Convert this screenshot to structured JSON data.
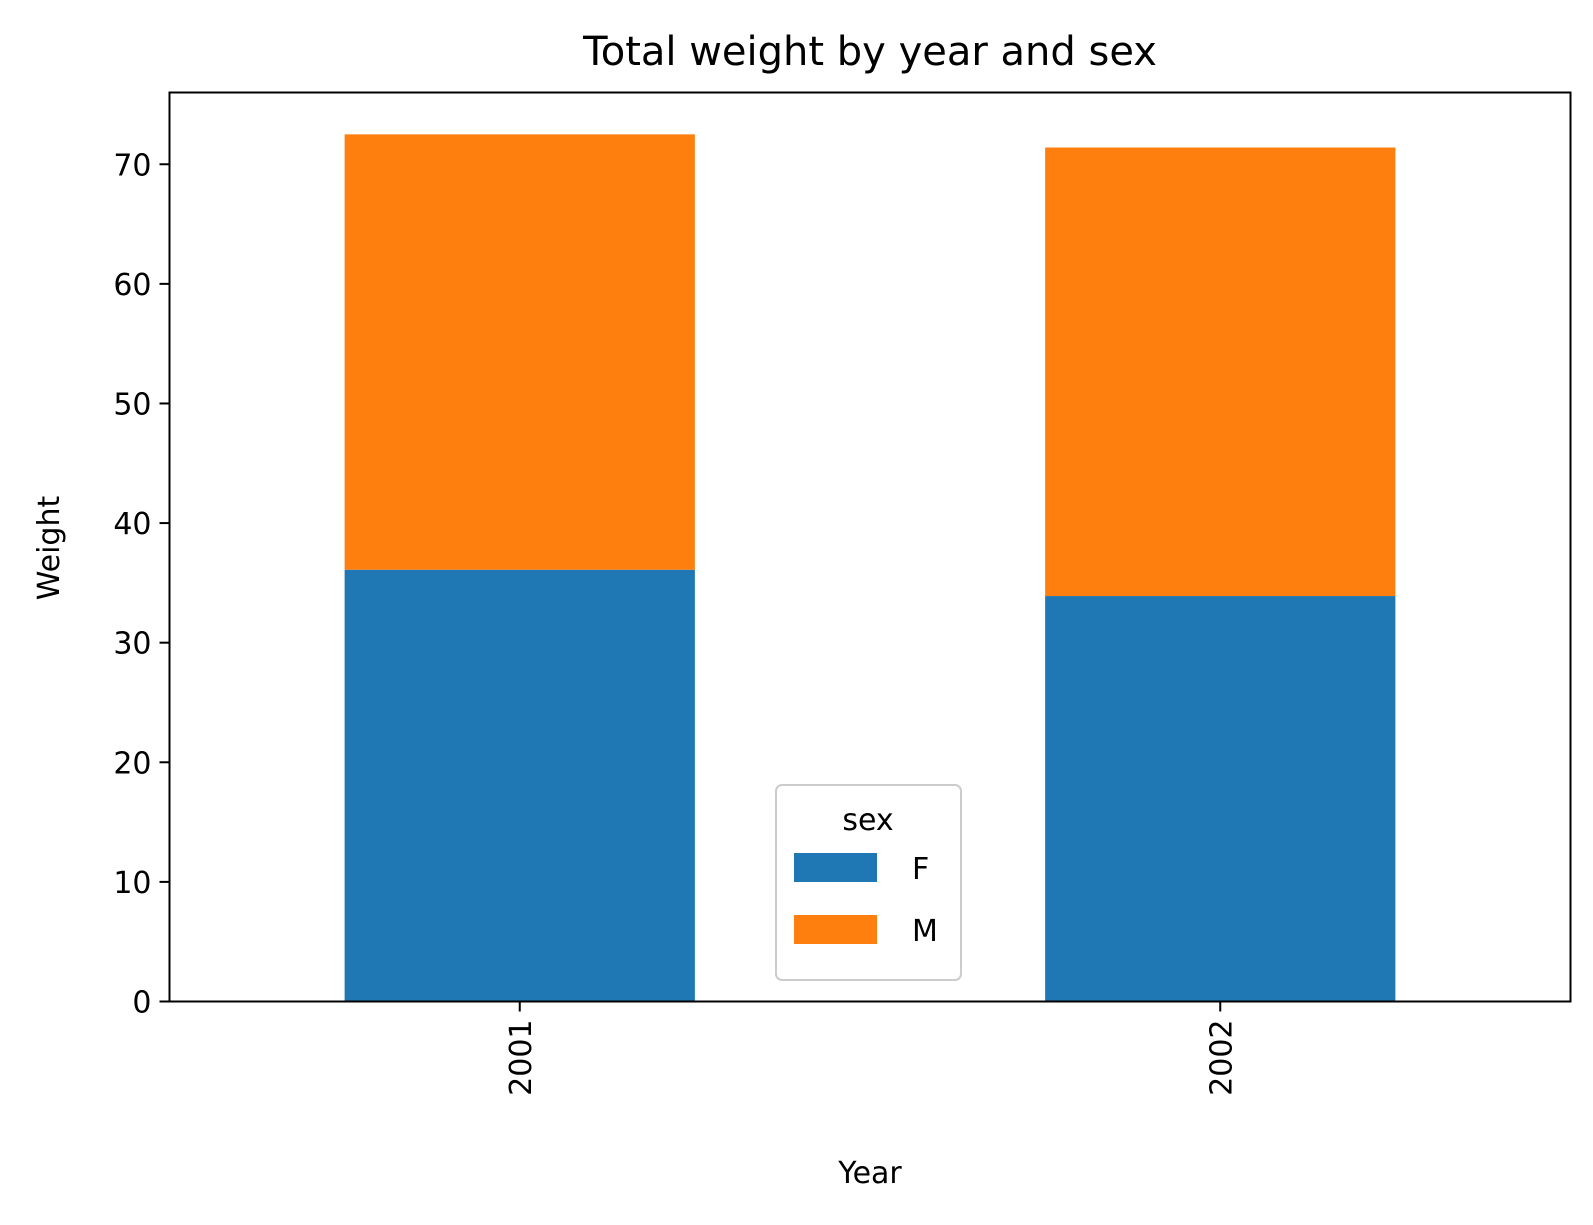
{
  "chart_data": {
    "type": "bar",
    "stacked": true,
    "title": "Total weight by year and sex",
    "xlabel": "Year",
    "ylabel": "Weight",
    "categories": [
      "2001",
      "2002"
    ],
    "series": [
      {
        "name": "F",
        "values": [
          36.1,
          33.9
        ],
        "color": "#1f77b4"
      },
      {
        "name": "M",
        "values": [
          36.4,
          37.5
        ],
        "color": "#ff7f0e"
      }
    ],
    "ylim": [
      0,
      76
    ],
    "yticks": [
      0,
      10,
      20,
      30,
      40,
      50,
      60,
      70
    ],
    "grid": false,
    "legend": {
      "title": "sex",
      "placement": "lower center"
    }
  }
}
